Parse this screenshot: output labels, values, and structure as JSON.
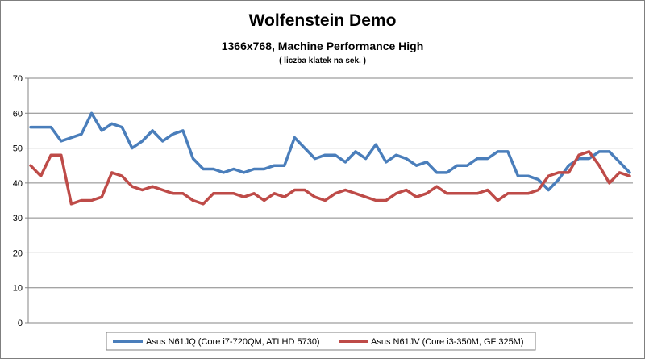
{
  "chart_data": {
    "type": "line",
    "title": "Wolfenstein Demo",
    "subtitle": "1366x768, Machine Performance High",
    "subtitle2": "( liczba klatek na sek. )",
    "xlabel": "",
    "ylabel": "",
    "ylim": [
      0,
      70
    ],
    "yticks": [
      0,
      10,
      20,
      30,
      40,
      50,
      60,
      70
    ],
    "grid": "horizontal",
    "legend": "bottom",
    "series": [
      {
        "name": "Asus N61JQ (Core i7-720QM, ATI HD 5730)",
        "color": "#4a7ebb",
        "values": [
          56,
          56,
          56,
          52,
          53,
          54,
          60,
          55,
          57,
          56,
          50,
          52,
          55,
          52,
          54,
          55,
          47,
          44,
          44,
          43,
          44,
          43,
          44,
          44,
          45,
          45,
          53,
          50,
          47,
          48,
          48,
          46,
          49,
          47,
          51,
          46,
          48,
          47,
          45,
          46,
          43,
          43,
          45,
          45,
          47,
          47,
          49,
          49,
          42,
          42,
          41,
          38,
          41,
          45,
          47,
          47,
          49,
          49,
          46,
          43
        ]
      },
      {
        "name": "Asus N61JV (Core i3-350M, GF 325M)",
        "color": "#be4b48",
        "values": [
          45,
          42,
          48,
          48,
          34,
          35,
          35,
          36,
          43,
          42,
          39,
          38,
          39,
          38,
          37,
          37,
          35,
          34,
          37,
          37,
          37,
          36,
          37,
          35,
          37,
          36,
          38,
          38,
          36,
          35,
          37,
          38,
          37,
          36,
          35,
          35,
          37,
          38,
          36,
          37,
          39,
          37,
          37,
          37,
          37,
          38,
          35,
          37,
          37,
          37,
          38,
          42,
          43,
          43,
          48,
          49,
          45,
          40,
          43,
          42
        ]
      }
    ]
  }
}
